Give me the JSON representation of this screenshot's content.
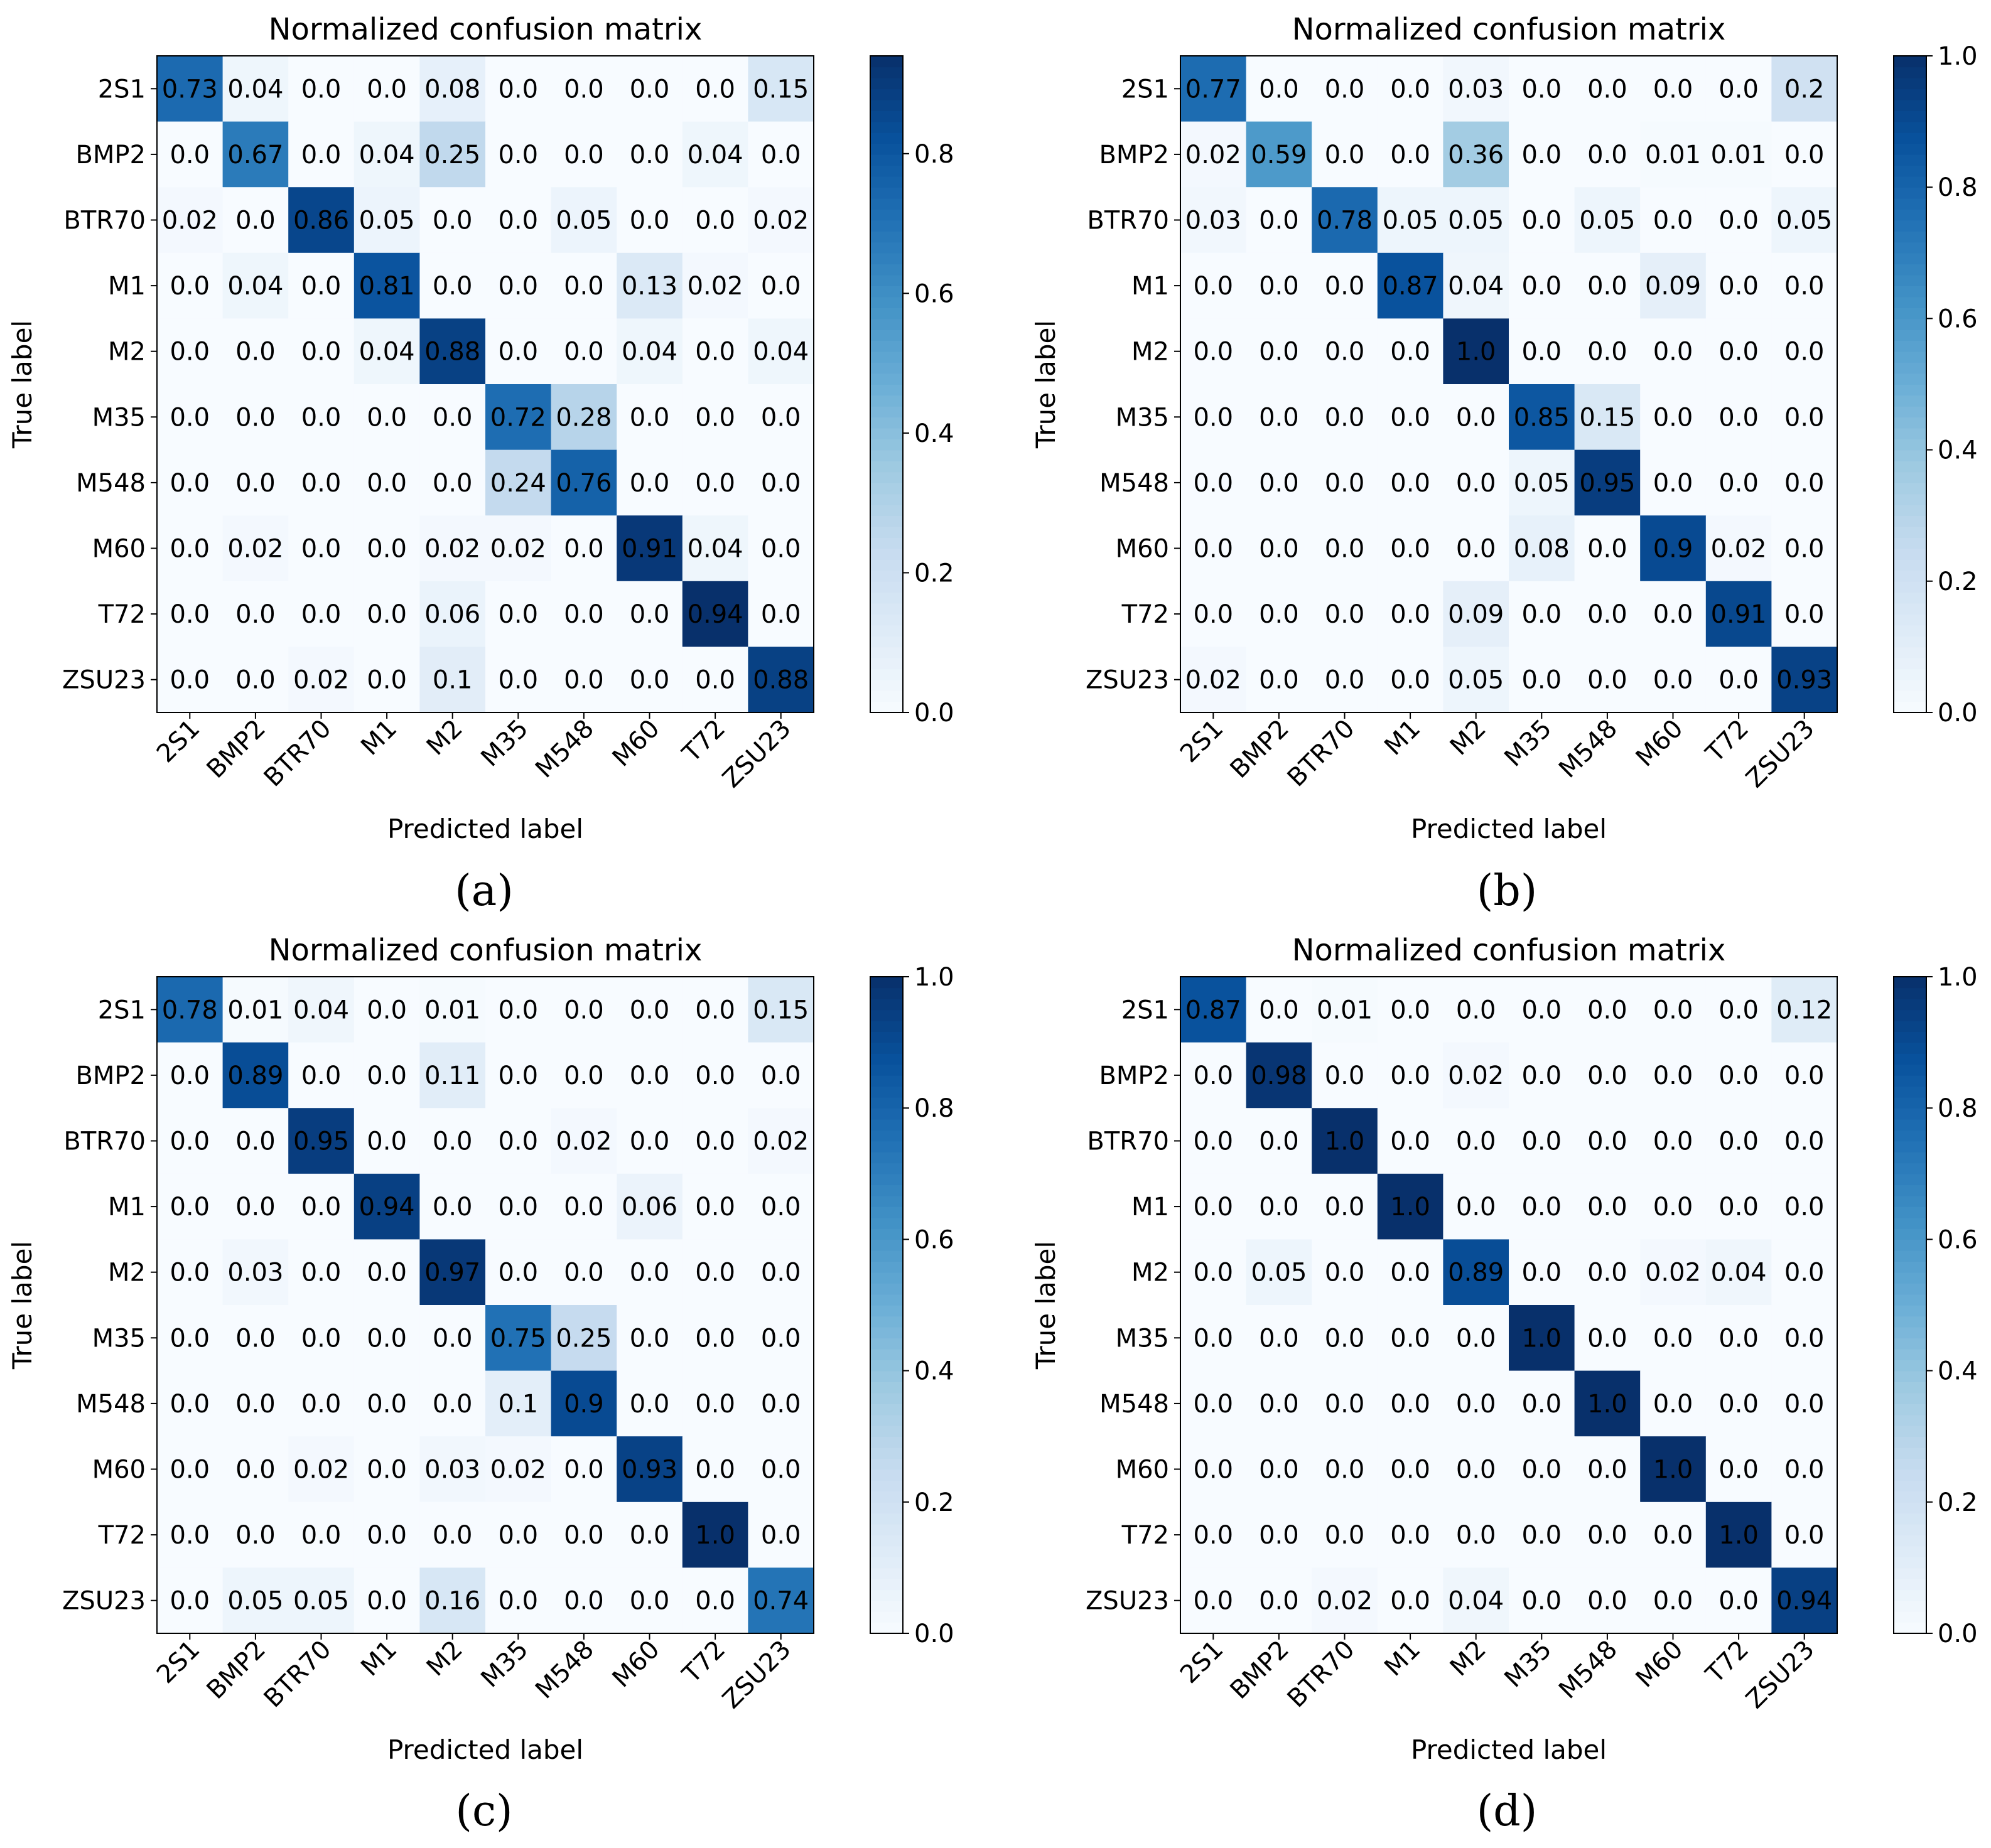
{
  "chart_data": [
    {
      "type": "heatmap",
      "panel": "(a)",
      "title": "Normalized confusion matrix",
      "xlabel": "Predicted label",
      "ylabel": "True label",
      "categories": [
        "2S1",
        "BMP2",
        "BTR70",
        "M1",
        "M2",
        "M35",
        "M548",
        "M60",
        "T72",
        "ZSU23"
      ],
      "values": [
        [
          0.73,
          0.04,
          0.0,
          0.0,
          0.08,
          0.0,
          0.0,
          0.0,
          0.0,
          0.15
        ],
        [
          0.0,
          0.67,
          0.0,
          0.04,
          0.25,
          0.0,
          0.0,
          0.0,
          0.04,
          0.0
        ],
        [
          0.02,
          0.0,
          0.86,
          0.05,
          0.0,
          0.0,
          0.05,
          0.0,
          0.0,
          0.02
        ],
        [
          0.0,
          0.04,
          0.0,
          0.81,
          0.0,
          0.0,
          0.0,
          0.13,
          0.02,
          0.0
        ],
        [
          0.0,
          0.0,
          0.0,
          0.04,
          0.88,
          0.0,
          0.0,
          0.04,
          0.0,
          0.04
        ],
        [
          0.0,
          0.0,
          0.0,
          0.0,
          0.0,
          0.72,
          0.28,
          0.0,
          0.0,
          0.0
        ],
        [
          0.0,
          0.0,
          0.0,
          0.0,
          0.0,
          0.24,
          0.76,
          0.0,
          0.0,
          0.0
        ],
        [
          0.0,
          0.02,
          0.0,
          0.0,
          0.02,
          0.02,
          0.0,
          0.91,
          0.04,
          0.0
        ],
        [
          0.0,
          0.0,
          0.0,
          0.0,
          0.06,
          0.0,
          0.0,
          0.0,
          0.94,
          0.0
        ],
        [
          0.0,
          0.0,
          0.02,
          0.0,
          0.1,
          0.0,
          0.0,
          0.0,
          0.0,
          0.88
        ]
      ],
      "colorbar": {
        "range": [
          0.0,
          0.94
        ],
        "ticks": [
          "0.0",
          "0.2",
          "0.4",
          "0.6",
          "0.8"
        ]
      }
    },
    {
      "type": "heatmap",
      "panel": "(b)",
      "title": "Normalized confusion matrix",
      "xlabel": "Predicted label",
      "ylabel": "True label",
      "categories": [
        "2S1",
        "BMP2",
        "BTR70",
        "M1",
        "M2",
        "M35",
        "M548",
        "M60",
        "T72",
        "ZSU23"
      ],
      "values": [
        [
          0.77,
          0.0,
          0.0,
          0.0,
          0.03,
          0.0,
          0.0,
          0.0,
          0.0,
          0.2
        ],
        [
          0.02,
          0.59,
          0.0,
          0.0,
          0.36,
          0.0,
          0.0,
          0.01,
          0.01,
          0.0
        ],
        [
          0.03,
          0.0,
          0.78,
          0.05,
          0.05,
          0.0,
          0.05,
          0.0,
          0.0,
          0.05
        ],
        [
          0.0,
          0.0,
          0.0,
          0.87,
          0.04,
          0.0,
          0.0,
          0.09,
          0.0,
          0.0
        ],
        [
          0.0,
          0.0,
          0.0,
          0.0,
          1.0,
          0.0,
          0.0,
          0.0,
          0.0,
          0.0
        ],
        [
          0.0,
          0.0,
          0.0,
          0.0,
          0.0,
          0.85,
          0.15,
          0.0,
          0.0,
          0.0
        ],
        [
          0.0,
          0.0,
          0.0,
          0.0,
          0.0,
          0.05,
          0.95,
          0.0,
          0.0,
          0.0
        ],
        [
          0.0,
          0.0,
          0.0,
          0.0,
          0.0,
          0.08,
          0.0,
          0.9,
          0.02,
          0.0
        ],
        [
          0.0,
          0.0,
          0.0,
          0.0,
          0.09,
          0.0,
          0.0,
          0.0,
          0.91,
          0.0
        ],
        [
          0.02,
          0.0,
          0.0,
          0.0,
          0.05,
          0.0,
          0.0,
          0.0,
          0.0,
          0.93
        ]
      ],
      "colorbar": {
        "range": [
          0.0,
          1.0
        ],
        "ticks": [
          "0.0",
          "0.2",
          "0.4",
          "0.6",
          "0.8",
          "1.0"
        ]
      }
    },
    {
      "type": "heatmap",
      "panel": "(c)",
      "title": "Normalized confusion matrix",
      "xlabel": "Predicted label",
      "ylabel": "True label",
      "categories": [
        "2S1",
        "BMP2",
        "BTR70",
        "M1",
        "M2",
        "M35",
        "M548",
        "M60",
        "T72",
        "ZSU23"
      ],
      "values": [
        [
          0.78,
          0.01,
          0.04,
          0.0,
          0.01,
          0.0,
          0.0,
          0.0,
          0.0,
          0.15
        ],
        [
          0.0,
          0.89,
          0.0,
          0.0,
          0.11,
          0.0,
          0.0,
          0.0,
          0.0,
          0.0
        ],
        [
          0.0,
          0.0,
          0.95,
          0.0,
          0.0,
          0.0,
          0.02,
          0.0,
          0.0,
          0.02
        ],
        [
          0.0,
          0.0,
          0.0,
          0.94,
          0.0,
          0.0,
          0.0,
          0.06,
          0.0,
          0.0
        ],
        [
          0.0,
          0.03,
          0.0,
          0.0,
          0.97,
          0.0,
          0.0,
          0.0,
          0.0,
          0.0
        ],
        [
          0.0,
          0.0,
          0.0,
          0.0,
          0.0,
          0.75,
          0.25,
          0.0,
          0.0,
          0.0
        ],
        [
          0.0,
          0.0,
          0.0,
          0.0,
          0.0,
          0.1,
          0.9,
          0.0,
          0.0,
          0.0
        ],
        [
          0.0,
          0.0,
          0.02,
          0.0,
          0.03,
          0.02,
          0.0,
          0.93,
          0.0,
          0.0
        ],
        [
          0.0,
          0.0,
          0.0,
          0.0,
          0.0,
          0.0,
          0.0,
          0.0,
          1.0,
          0.0
        ],
        [
          0.0,
          0.05,
          0.05,
          0.0,
          0.16,
          0.0,
          0.0,
          0.0,
          0.0,
          0.74
        ]
      ],
      "colorbar": {
        "range": [
          0.0,
          1.0
        ],
        "ticks": [
          "0.0",
          "0.2",
          "0.4",
          "0.6",
          "0.8",
          "1.0"
        ]
      }
    },
    {
      "type": "heatmap",
      "panel": "(d)",
      "title": "Normalized confusion matrix",
      "xlabel": "Predicted label",
      "ylabel": "True label",
      "categories": [
        "2S1",
        "BMP2",
        "BTR70",
        "M1",
        "M2",
        "M35",
        "M548",
        "M60",
        "T72",
        "ZSU23"
      ],
      "values": [
        [
          0.87,
          0.0,
          0.01,
          0.0,
          0.0,
          0.0,
          0.0,
          0.0,
          0.0,
          0.12
        ],
        [
          0.0,
          0.98,
          0.0,
          0.0,
          0.02,
          0.0,
          0.0,
          0.0,
          0.0,
          0.0
        ],
        [
          0.0,
          0.0,
          1.0,
          0.0,
          0.0,
          0.0,
          0.0,
          0.0,
          0.0,
          0.0
        ],
        [
          0.0,
          0.0,
          0.0,
          1.0,
          0.0,
          0.0,
          0.0,
          0.0,
          0.0,
          0.0
        ],
        [
          0.0,
          0.05,
          0.0,
          0.0,
          0.89,
          0.0,
          0.0,
          0.02,
          0.04,
          0.0
        ],
        [
          0.0,
          0.0,
          0.0,
          0.0,
          0.0,
          1.0,
          0.0,
          0.0,
          0.0,
          0.0
        ],
        [
          0.0,
          0.0,
          0.0,
          0.0,
          0.0,
          0.0,
          1.0,
          0.0,
          0.0,
          0.0
        ],
        [
          0.0,
          0.0,
          0.0,
          0.0,
          0.0,
          0.0,
          0.0,
          1.0,
          0.0,
          0.0
        ],
        [
          0.0,
          0.0,
          0.0,
          0.0,
          0.0,
          0.0,
          0.0,
          0.0,
          1.0,
          0.0
        ],
        [
          0.0,
          0.0,
          0.02,
          0.0,
          0.04,
          0.0,
          0.0,
          0.0,
          0.0,
          0.94
        ]
      ],
      "colorbar": {
        "range": [
          0.0,
          1.0
        ],
        "ticks": [
          "0.0",
          "0.2",
          "0.4",
          "0.6",
          "0.8",
          "1.0"
        ]
      }
    }
  ]
}
